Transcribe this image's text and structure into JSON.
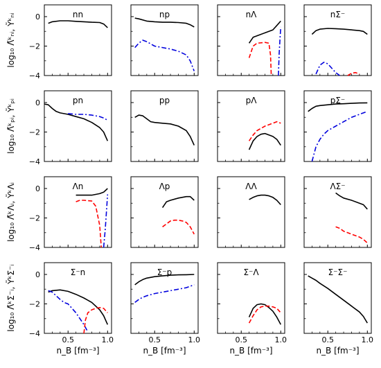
{
  "chart_data": {
    "type": "line",
    "grid": false,
    "xlim": [
      0.2,
      1.05
    ],
    "ylim": [
      -4,
      0.8
    ],
    "xticks": [
      "0.5",
      "1.0"
    ],
    "yticks": [
      "0",
      "−2",
      "−4"
    ],
    "xlabel": "n_B [fm⁻³]",
    "row_ylabels": [
      "log₁₀ Λ̃ᵏₙᵢ, Ỹᵏₙᵢ",
      "log₁₀ Λ̃ᵏₚᵢ, Ỹᵏₚᵢ",
      "log₁₀ Λ̃ᵏΛᵢ, ỸᵏΛᵢ",
      "log₁₀ Λ̃ᵏΣ⁻ᵢ, ỸᵏΣ⁻ᵢ"
    ],
    "colors": {
      "black": "#000000",
      "red": "#ff0000",
      "blue": "#0000dd"
    },
    "panels": [
      {
        "title": "nn",
        "series": [
          {
            "style": "black",
            "x": [
              0.25,
              0.3,
              0.4,
              0.5,
              0.6,
              0.7,
              0.8,
              0.9,
              0.95,
              1.0
            ],
            "y": [
              -0.45,
              -0.35,
              -0.28,
              -0.28,
              -0.32,
              -0.35,
              -0.38,
              -0.4,
              -0.5,
              -0.75
            ]
          }
        ]
      },
      {
        "title": "np",
        "series": [
          {
            "style": "black",
            "x": [
              0.25,
              0.3,
              0.4,
              0.5,
              0.6,
              0.7,
              0.8,
              0.9,
              0.95,
              1.0
            ],
            "y": [
              -0.1,
              -0.15,
              -0.3,
              -0.35,
              -0.38,
              -0.38,
              -0.4,
              -0.45,
              -0.55,
              -0.7
            ]
          },
          {
            "style": "blue",
            "x": [
              0.25,
              0.3,
              0.35,
              0.4,
              0.5,
              0.6,
              0.7,
              0.8,
              0.9,
              0.95,
              1.0
            ],
            "y": [
              -2.1,
              -1.8,
              -1.6,
              -1.7,
              -2.0,
              -2.1,
              -2.2,
              -2.35,
              -2.6,
              -3.0,
              -3.7
            ]
          }
        ]
      },
      {
        "title": "nΛ",
        "series": [
          {
            "style": "black",
            "x": [
              0.6,
              0.65,
              0.7,
              0.8,
              0.9,
              0.95,
              1.0
            ],
            "y": [
              -1.8,
              -1.4,
              -1.3,
              -1.1,
              -0.9,
              -0.6,
              -0.3
            ]
          },
          {
            "style": "red",
            "x": [
              0.6,
              0.65,
              0.7,
              0.8,
              0.85,
              0.87,
              0.88
            ],
            "y": [
              -2.8,
              -2.0,
              -1.8,
              -1.75,
              -1.8,
              -2.6,
              -4.0
            ]
          },
          {
            "style": "blue",
            "x": [
              0.97,
              0.98,
              0.99,
              1.0
            ],
            "y": [
              -4.0,
              -2.5,
              -1.5,
              -0.7
            ]
          }
        ]
      },
      {
        "title": "nΣ⁻",
        "series": [
          {
            "style": "black",
            "x": [
              0.3,
              0.35,
              0.4,
              0.5,
              0.6,
              0.7,
              0.8,
              0.9,
              0.95,
              1.0
            ],
            "y": [
              -1.2,
              -0.95,
              -0.85,
              -0.8,
              -0.82,
              -0.85,
              -0.9,
              -0.95,
              -1.0,
              -1.2
            ]
          },
          {
            "style": "blue",
            "x": [
              0.35,
              0.4,
              0.45,
              0.5,
              0.55,
              0.6,
              0.65
            ],
            "y": [
              -3.9,
              -3.3,
              -3.1,
              -3.2,
              -3.5,
              -3.8,
              -4.0
            ]
          },
          {
            "style": "red",
            "x": [
              0.75,
              0.8,
              0.85,
              0.9
            ],
            "y": [
              -4.0,
              -3.85,
              -3.8,
              -3.9
            ]
          }
        ]
      },
      {
        "title": "pn",
        "series": [
          {
            "style": "black",
            "x": [
              0.2,
              0.25,
              0.3,
              0.35,
              0.4,
              0.5,
              0.6,
              0.7,
              0.8,
              0.9,
              0.95,
              1.0
            ],
            "y": [
              -0.1,
              -0.15,
              -0.4,
              -0.6,
              -0.7,
              -0.8,
              -0.95,
              -1.1,
              -1.35,
              -1.7,
              -2.0,
              -2.6
            ]
          },
          {
            "style": "blue",
            "x": [
              0.5,
              0.6,
              0.7,
              0.8,
              0.9,
              0.95,
              1.0
            ],
            "y": [
              -0.75,
              -0.8,
              -0.8,
              -0.85,
              -0.95,
              -1.05,
              -1.2
            ]
          }
        ]
      },
      {
        "title": "pp",
        "series": [
          {
            "style": "black",
            "x": [
              0.25,
              0.3,
              0.35,
              0.4,
              0.45,
              0.5,
              0.6,
              0.7,
              0.8,
              0.9,
              0.95,
              1.0
            ],
            "y": [
              -1.0,
              -0.85,
              -0.9,
              -1.1,
              -1.3,
              -1.35,
              -1.4,
              -1.45,
              -1.6,
              -1.9,
              -2.3,
              -2.9
            ]
          }
        ]
      },
      {
        "title": "pΛ",
        "series": [
          {
            "style": "black",
            "x": [
              0.6,
              0.65,
              0.7,
              0.75,
              0.8,
              0.9,
              0.95,
              1.0
            ],
            "y": [
              -3.2,
              -2.6,
              -2.3,
              -2.15,
              -2.1,
              -2.3,
              -2.5,
              -2.9
            ]
          },
          {
            "style": "red",
            "x": [
              0.6,
              0.65,
              0.7,
              0.8,
              0.9,
              0.95,
              1.0
            ],
            "y": [
              -2.6,
              -2.2,
              -1.9,
              -1.6,
              -1.4,
              -1.3,
              -1.4
            ]
          }
        ]
      },
      {
        "title": "pΣ⁻",
        "series": [
          {
            "style": "black",
            "x": [
              0.25,
              0.3,
              0.35,
              0.4,
              0.5,
              0.6,
              0.7,
              0.8,
              0.9,
              1.0
            ],
            "y": [
              -0.6,
              -0.4,
              -0.25,
              -0.2,
              -0.15,
              -0.1,
              -0.08,
              -0.05,
              -0.03,
              -0.02
            ]
          },
          {
            "style": "blue",
            "x": [
              0.3,
              0.35,
              0.4,
              0.45,
              0.5,
              0.6,
              0.7,
              0.8,
              0.9,
              1.0
            ],
            "y": [
              -4.0,
              -3.0,
              -2.5,
              -2.15,
              -1.9,
              -1.6,
              -1.3,
              -1.0,
              -0.8,
              -0.6
            ]
          }
        ]
      },
      {
        "title": "Λn",
        "series": [
          {
            "style": "black",
            "x": [
              0.6,
              0.7,
              0.8,
              0.85,
              0.9,
              0.95,
              1.0
            ],
            "y": [
              -0.45,
              -0.45,
              -0.45,
              -0.4,
              -0.35,
              -0.25,
              0.0
            ]
          },
          {
            "style": "red",
            "x": [
              0.6,
              0.65,
              0.7,
              0.8,
              0.85,
              0.9,
              0.92
            ],
            "y": [
              -0.9,
              -0.8,
              -0.8,
              -0.85,
              -1.2,
              -2.5,
              -4.0
            ]
          },
          {
            "style": "blue",
            "x": [
              0.95,
              0.97,
              0.99,
              1.0
            ],
            "y": [
              -4.0,
              -2.8,
              -1.2,
              -0.4
            ]
          }
        ]
      },
      {
        "title": "Λp",
        "series": [
          {
            "style": "black",
            "x": [
              0.6,
              0.65,
              0.7,
              0.8,
              0.9,
              0.95,
              1.0
            ],
            "y": [
              -1.3,
              -0.9,
              -0.8,
              -0.65,
              -0.55,
              -0.55,
              -0.8
            ]
          },
          {
            "style": "red",
            "x": [
              0.6,
              0.65,
              0.7,
              0.75,
              0.8,
              0.85,
              0.9,
              0.95,
              1.0
            ],
            "y": [
              -2.6,
              -2.4,
              -2.2,
              -2.15,
              -2.15,
              -2.2,
              -2.3,
              -2.6,
              -3.1
            ]
          }
        ]
      },
      {
        "title": "ΛΛ",
        "series": [
          {
            "style": "black",
            "x": [
              0.6,
              0.65,
              0.7,
              0.75,
              0.8,
              0.85,
              0.9,
              0.95,
              1.0
            ],
            "y": [
              -0.75,
              -0.6,
              -0.5,
              -0.45,
              -0.45,
              -0.5,
              -0.6,
              -0.8,
              -1.1
            ]
          }
        ]
      },
      {
        "title": "ΛΣ⁻",
        "series": [
          {
            "style": "black",
            "x": [
              0.6,
              0.65,
              0.7,
              0.8,
              0.9,
              0.95,
              1.0
            ],
            "y": [
              -0.3,
              -0.5,
              -0.65,
              -0.8,
              -1.0,
              -1.1,
              -1.4
            ]
          },
          {
            "style": "red",
            "x": [
              0.6,
              0.65,
              0.7,
              0.8,
              0.9,
              0.95,
              1.0
            ],
            "y": [
              -2.6,
              -2.7,
              -2.9,
              -3.1,
              -3.3,
              -3.45,
              -3.7
            ]
          }
        ]
      },
      {
        "title": "Σ⁻n",
        "series": [
          {
            "style": "black",
            "x": [
              0.25,
              0.3,
              0.4,
              0.5,
              0.6,
              0.7,
              0.8,
              0.9,
              0.95,
              1.0
            ],
            "y": [
              -1.2,
              -1.1,
              -1.05,
              -1.15,
              -1.35,
              -1.6,
              -1.9,
              -2.4,
              -2.8,
              -3.4
            ]
          },
          {
            "style": "blue",
            "x": [
              0.25,
              0.3,
              0.35,
              0.4,
              0.45,
              0.5,
              0.55,
              0.6,
              0.65,
              0.7,
              0.75
            ],
            "y": [
              -1.1,
              -1.2,
              -1.45,
              -1.7,
              -1.9,
              -2.0,
              -2.3,
              -2.6,
              -3.0,
              -3.4,
              -3.9
            ]
          },
          {
            "style": "red",
            "x": [
              0.7,
              0.72,
              0.75,
              0.8,
              0.85,
              0.9,
              0.95,
              1.0
            ],
            "y": [
              -4.0,
              -3.1,
              -2.6,
              -2.4,
              -2.3,
              -2.25,
              -2.3,
              -2.6
            ]
          }
        ]
      },
      {
        "title": "Σ⁻p",
        "series": [
          {
            "style": "black",
            "x": [
              0.25,
              0.3,
              0.35,
              0.4,
              0.5,
              0.6,
              0.7,
              0.8,
              0.9,
              1.0
            ],
            "y": [
              -0.7,
              -0.5,
              -0.35,
              -0.25,
              -0.15,
              -0.1,
              -0.05,
              -0.03,
              -0.02,
              0.0
            ]
          },
          {
            "style": "blue",
            "x": [
              0.25,
              0.3,
              0.35,
              0.4,
              0.5,
              0.6,
              0.7,
              0.8,
              0.9,
              1.0
            ],
            "y": [
              -1.9,
              -1.7,
              -1.55,
              -1.45,
              -1.3,
              -1.2,
              -1.1,
              -1.0,
              -0.9,
              -0.7
            ]
          }
        ]
      },
      {
        "title": "Σ⁻Λ",
        "series": [
          {
            "style": "black",
            "x": [
              0.6,
              0.65,
              0.7,
              0.75,
              0.8,
              0.85,
              0.9,
              0.95,
              1.0
            ],
            "y": [
              -2.9,
              -2.3,
              -2.05,
              -2.0,
              -2.05,
              -2.25,
              -2.5,
              -2.9,
              -3.4
            ]
          },
          {
            "style": "red",
            "x": [
              0.6,
              0.65,
              0.7,
              0.75,
              0.8,
              0.85,
              0.9,
              0.95,
              1.0
            ],
            "y": [
              -3.3,
              -2.8,
              -2.4,
              -2.2,
              -2.15,
              -2.15,
              -2.2,
              -2.3,
              -2.6
            ]
          }
        ]
      },
      {
        "title": "Σ⁻Σ⁻",
        "series": [
          {
            "style": "black",
            "x": [
              0.25,
              0.3,
              0.35,
              0.4,
              0.5,
              0.6,
              0.7,
              0.8,
              0.9,
              0.95,
              1.0
            ],
            "y": [
              -0.1,
              -0.25,
              -0.4,
              -0.6,
              -0.95,
              -1.35,
              -1.75,
              -2.15,
              -2.55,
              -2.85,
              -3.3
            ]
          }
        ]
      }
    ]
  }
}
